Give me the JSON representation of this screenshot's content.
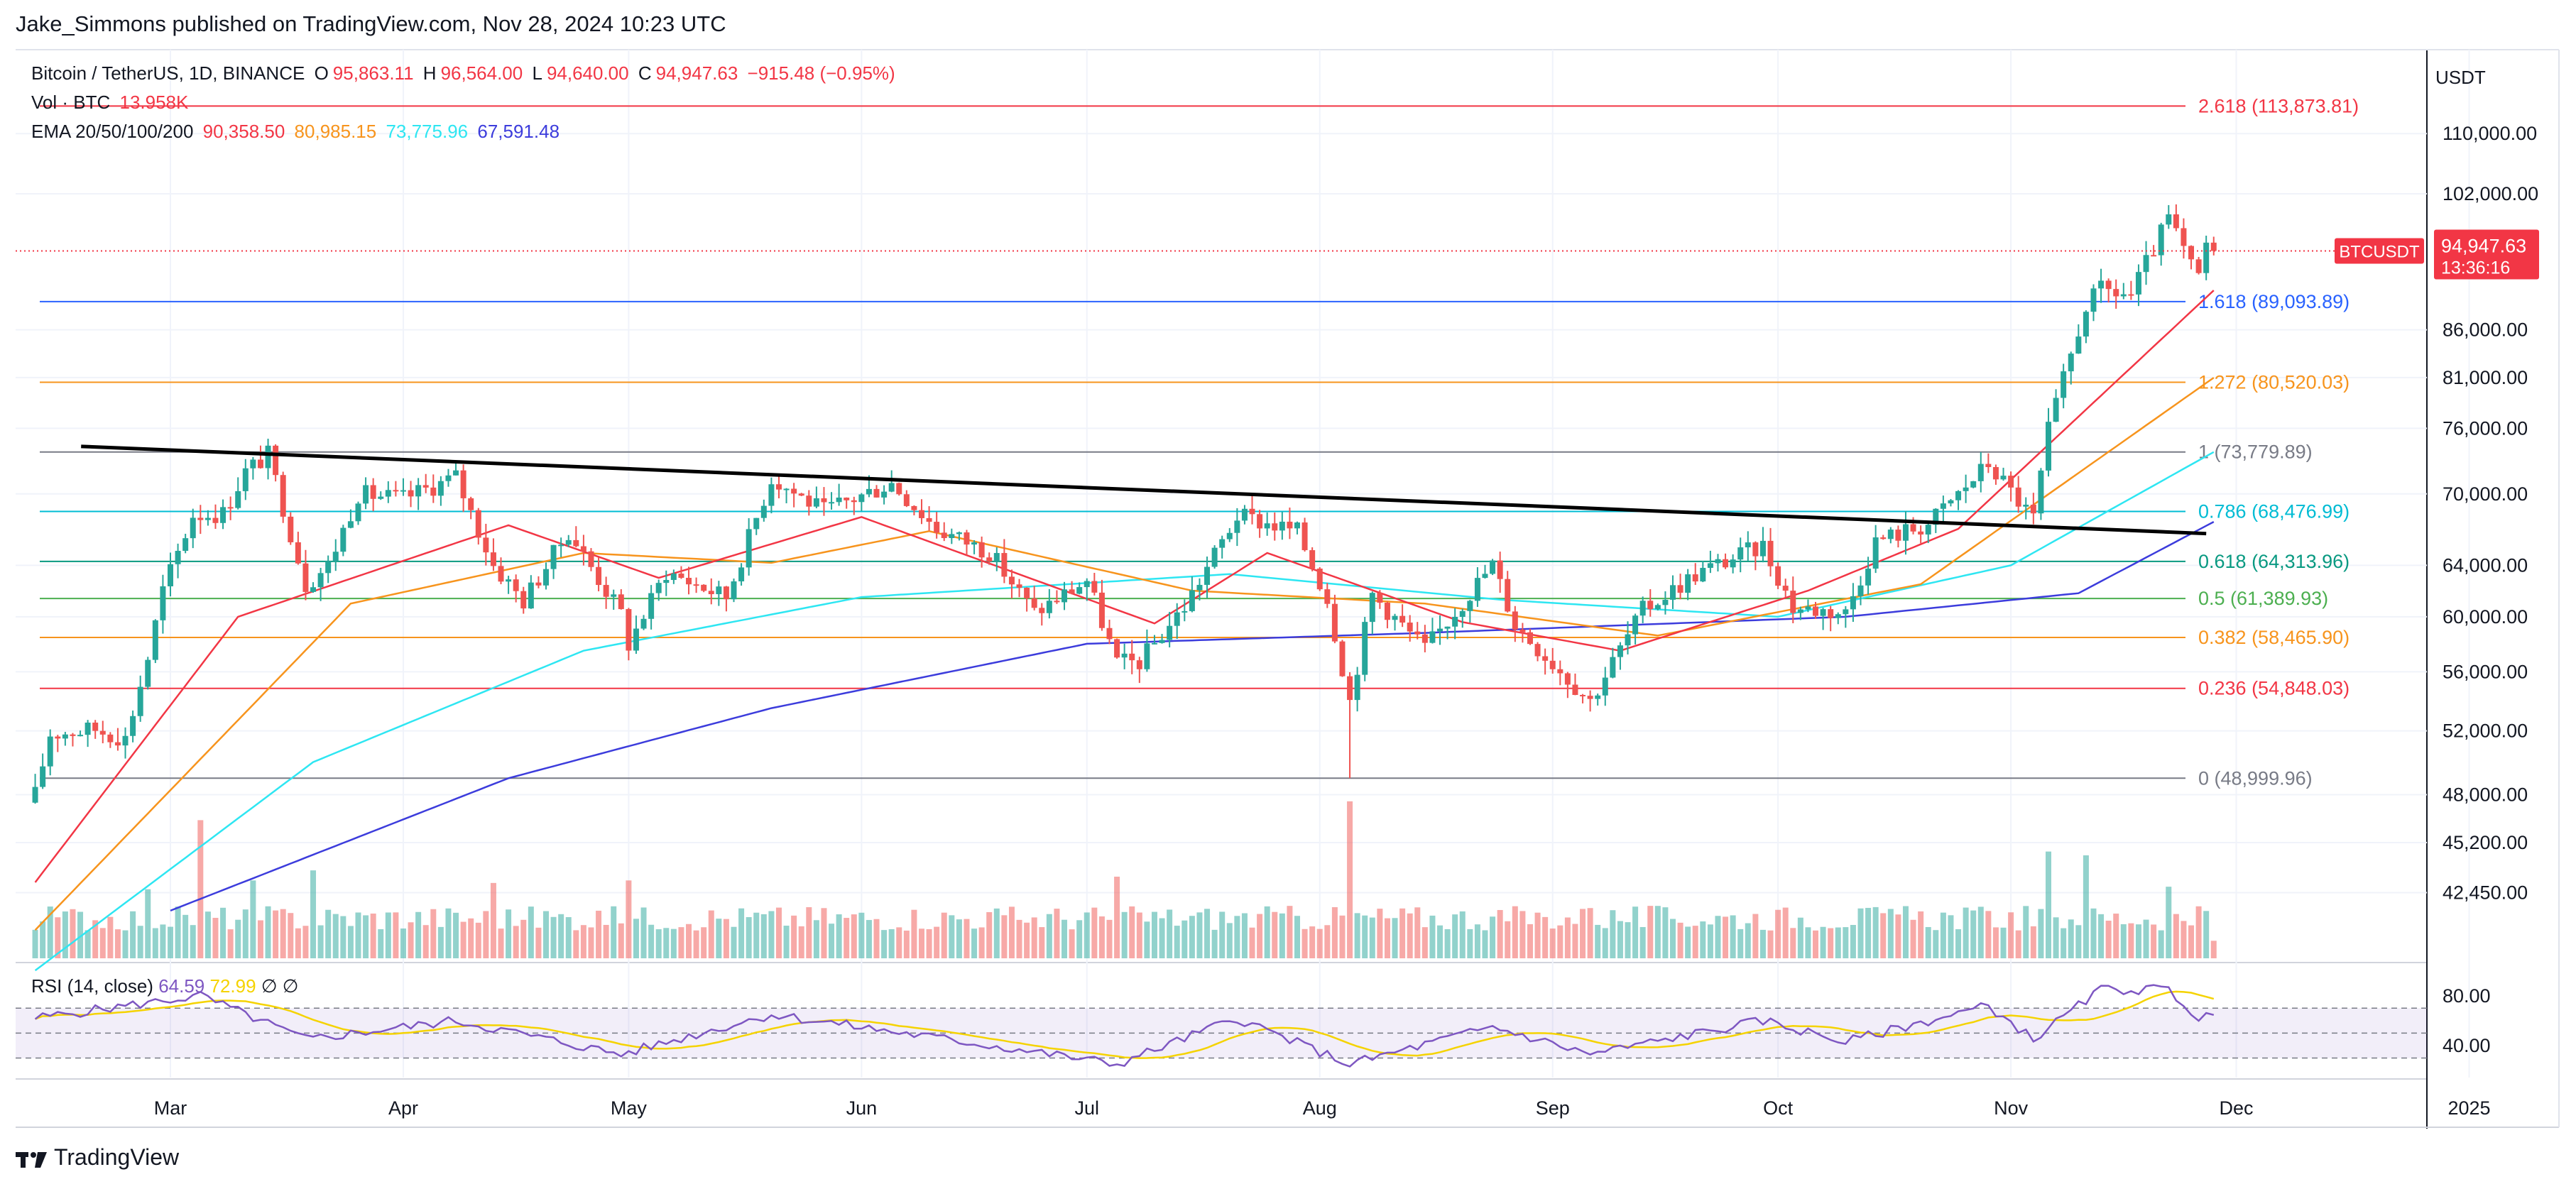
{
  "header": {
    "publisher": "Jake_Simmons published on TradingView.com, Nov 28, 2024 10:23 UTC"
  },
  "legend": {
    "symbol": "Bitcoin / TetherUS, 1D, BINANCE",
    "open_label": "O",
    "open": "95,863.11",
    "high_label": "H",
    "high": "96,564.00",
    "low_label": "L",
    "low": "94,640.00",
    "close_label": "C",
    "close": "94,947.63",
    "change": "−915.48 (−0.95%)",
    "vol_label": "Vol · BTC",
    "vol_value": "13.958K",
    "ema_label": "EMA 20/50/100/200",
    "ema20": "90,358.50",
    "ema50": "80,985.15",
    "ema100": "73,775.96",
    "ema200": "67,591.48"
  },
  "rsi_legend": {
    "label": "RSI (14, close)",
    "rsi": "64.59",
    "ma": "72.99",
    "icon1": "∅",
    "icon2": "∅"
  },
  "price_axis": {
    "currency": "USDT"
  },
  "price_tag": {
    "symbol": "BTCUSDT",
    "price": "94,947.63",
    "countdown": "13:36:16"
  },
  "footer": {
    "brand": "TradingView"
  },
  "colors": {
    "up": "#26a69a",
    "down": "#ef5350",
    "ema20": "#f23645",
    "ema50": "#f7941d",
    "ema100": "#2ee6f2",
    "ema200": "#3c3cdc",
    "rsi": "#7e57c2",
    "rsi_ma": "#f5d300"
  },
  "chart_data": {
    "type": "candlestick",
    "symbol": "BTCUSDT",
    "interval": "1D",
    "y_scale": "log",
    "y_ticks": [
      110000,
      102000,
      86000,
      81000,
      76000,
      70000,
      64000,
      60000,
      56000,
      52000,
      48000,
      45200,
      42450
    ],
    "y_tick_labels": [
      "110,000.00",
      "102,000.00",
      "86,000.00",
      "81,000.00",
      "76,000.00",
      "70,000.00",
      "64,000.00",
      "60,000.00",
      "56,000.00",
      "52,000.00",
      "48,000.00",
      "45,200.00",
      "42,450.00"
    ],
    "x_ticks": [
      "Mar",
      "Apr",
      "May",
      "Jun",
      "Jul",
      "Aug",
      "Sep",
      "Oct",
      "Nov",
      "Dec",
      "2025"
    ],
    "x_tick_dates": [
      "2024-03-01",
      "2024-04-01",
      "2024-05-01",
      "2024-06-01",
      "2024-07-01",
      "2024-08-01",
      "2024-09-01",
      "2024-10-01",
      "2024-11-01",
      "2024-12-01",
      "2025-01-01"
    ],
    "last_price": 94947.63,
    "fib_levels": [
      {
        "label": "2.618 (113,873.81)",
        "value": 113873.81,
        "color": "#f23645"
      },
      {
        "label": "1.618 (89,093.89)",
        "value": 89093.89,
        "color": "#2962ff"
      },
      {
        "label": "1.272 (80,520.03)",
        "value": 80520.03,
        "color": "#f7941d"
      },
      {
        "label": "1 (73,779.89)",
        "value": 73779.89,
        "color": "#787b86"
      },
      {
        "label": "0.786 (68,476.99)",
        "value": 68476.99,
        "color": "#00bcd4"
      },
      {
        "label": "0.618 (64,313.96)",
        "value": 64313.96,
        "color": "#089981"
      },
      {
        "label": "0.5 (61,389.93)",
        "value": 61389.93,
        "color": "#4caf50"
      },
      {
        "label": "0.382 (58,465.90)",
        "value": 58465.9,
        "color": "#f7941d"
      },
      {
        "label": "0.236 (54,848.03)",
        "value": 54848.03,
        "color": "#f23645"
      },
      {
        "label": "0 (48,999.96)",
        "value": 48999.96,
        "color": "#787b86"
      }
    ],
    "trendline": {
      "from": [
        "2024-02-20",
        74300
      ],
      "to": [
        "2024-11-27",
        66600
      ]
    },
    "close_keypoints": [
      [
        "2024-02-12",
        48000
      ],
      [
        "2024-02-14",
        51800
      ],
      [
        "2024-02-20",
        52100
      ],
      [
        "2024-02-24",
        51500
      ],
      [
        "2024-02-27",
        57000
      ],
      [
        "2024-02-29",
        62000
      ],
      [
        "2024-03-04",
        68200
      ],
      [
        "2024-03-08",
        68300
      ],
      [
        "2024-03-11",
        72000
      ],
      [
        "2024-03-14",
        73500
      ],
      [
        "2024-03-19",
        62500
      ],
      [
        "2024-03-22",
        64000
      ],
      [
        "2024-03-26",
        70000
      ],
      [
        "2024-04-01",
        69600
      ],
      [
        "2024-04-08",
        71500
      ],
      [
        "2024-04-13",
        64000
      ],
      [
        "2024-04-17",
        61200
      ],
      [
        "2024-04-23",
        66800
      ],
      [
        "2024-04-30",
        60200
      ],
      [
        "2024-05-01",
        58000
      ],
      [
        "2024-05-06",
        63500
      ],
      [
        "2024-05-14",
        61500
      ],
      [
        "2024-05-20",
        71400
      ],
      [
        "2024-05-27",
        68500
      ],
      [
        "2024-06-05",
        71000
      ],
      [
        "2024-06-11",
        67000
      ],
      [
        "2024-06-18",
        65100
      ],
      [
        "2024-06-24",
        60300
      ],
      [
        "2024-07-01",
        62800
      ],
      [
        "2024-07-05",
        56600
      ],
      [
        "2024-07-08",
        56700
      ],
      [
        "2024-07-14",
        60800
      ],
      [
        "2024-07-21",
        68100
      ],
      [
        "2024-07-29",
        66800
      ],
      [
        "2024-08-02",
        61400
      ],
      [
        "2024-08-05",
        54000
      ],
      [
        "2024-08-08",
        61700
      ],
      [
        "2024-08-15",
        57600
      ],
      [
        "2024-08-24",
        64100
      ],
      [
        "2024-08-27",
        59400
      ],
      [
        "2024-09-06",
        54000
      ],
      [
        "2024-09-13",
        60500
      ],
      [
        "2024-09-20",
        63300
      ],
      [
        "2024-09-29",
        65600
      ],
      [
        "2024-10-03",
        60700
      ],
      [
        "2024-10-10",
        60300
      ],
      [
        "2024-10-14",
        66000
      ],
      [
        "2024-10-21",
        67400
      ],
      [
        "2024-10-29",
        72700
      ],
      [
        "2024-11-04",
        67800
      ],
      [
        "2024-11-06",
        75800
      ],
      [
        "2024-11-11",
        88700
      ],
      [
        "2024-11-13",
        90400
      ],
      [
        "2024-11-17",
        89800
      ],
      [
        "2024-11-22",
        98900
      ],
      [
        "2024-11-25",
        93000
      ],
      [
        "2024-11-26",
        91900
      ],
      [
        "2024-11-27",
        95863
      ],
      [
        "2024-11-28",
        94947.63
      ]
    ],
    "ema_keypoints": {
      "ema20": [
        [
          "2024-02-12",
          43000
        ],
        [
          "2024-03-10",
          60000
        ],
        [
          "2024-04-15",
          67300
        ],
        [
          "2024-05-05",
          63000
        ],
        [
          "2024-06-01",
          68000
        ],
        [
          "2024-07-10",
          59500
        ],
        [
          "2024-07-25",
          65000
        ],
        [
          "2024-08-20",
          59600
        ],
        [
          "2024-09-10",
          57500
        ],
        [
          "2024-10-05",
          62000
        ],
        [
          "2024-10-25",
          67000
        ],
        [
          "2024-11-28",
          90358.5
        ]
      ],
      "ema50": [
        [
          "2024-02-12",
          40500
        ],
        [
          "2024-03-25",
          61000
        ],
        [
          "2024-04-25",
          65000
        ],
        [
          "2024-05-20",
          64200
        ],
        [
          "2024-06-10",
          66800
        ],
        [
          "2024-07-15",
          62000
        ],
        [
          "2024-08-15",
          61000
        ],
        [
          "2024-09-15",
          58600
        ],
        [
          "2024-10-20",
          62500
        ],
        [
          "2024-11-28",
          80985.15
        ]
      ],
      "ema100": [
        [
          "2024-02-12",
          38500
        ],
        [
          "2024-03-20",
          50000
        ],
        [
          "2024-04-25",
          57500
        ],
        [
          "2024-06-01",
          61500
        ],
        [
          "2024-07-20",
          63300
        ],
        [
          "2024-08-25",
          61300
        ],
        [
          "2024-10-01",
          60000
        ],
        [
          "2024-11-01",
          64000
        ],
        [
          "2024-11-28",
          73775.96
        ]
      ],
      "ema200": [
        [
          "2024-03-01",
          41500
        ],
        [
          "2024-04-15",
          49000
        ],
        [
          "2024-05-20",
          53500
        ],
        [
          "2024-07-01",
          58000
        ],
        [
          "2024-08-15",
          58800
        ],
        [
          "2024-10-10",
          60000
        ],
        [
          "2024-11-10",
          61800
        ],
        [
          "2024-11-28",
          67591.48
        ]
      ]
    },
    "volume_btc_k": [
      [
        "2024-02-27",
        55
      ],
      [
        "2024-03-05",
        110
      ],
      [
        "2024-03-12",
        62
      ],
      [
        "2024-03-20",
        70
      ],
      [
        "2024-04-13",
        60
      ],
      [
        "2024-05-01",
        62
      ],
      [
        "2024-07-05",
        65
      ],
      [
        "2024-08-05",
        125
      ],
      [
        "2024-09-06",
        40
      ],
      [
        "2024-11-06",
        85
      ],
      [
        "2024-11-11",
        82
      ],
      [
        "2024-11-22",
        57
      ],
      [
        "2024-11-28",
        13.958
      ]
    ],
    "rsi": {
      "period": 14,
      "last": 64.59,
      "ma_last": 72.99,
      "y_ticks": [
        80,
        40
      ],
      "y_tick_labels": [
        "80.00",
        "40.00"
      ],
      "overbought": 70,
      "oversold": 30,
      "keypoints": [
        [
          "2024-02-12",
          62
        ],
        [
          "2024-03-05",
          80
        ],
        [
          "2024-03-19",
          45
        ],
        [
          "2024-04-08",
          60
        ],
        [
          "2024-04-30",
          33
        ],
        [
          "2024-05-20",
          65
        ],
        [
          "2024-06-24",
          35
        ],
        [
          "2024-07-05",
          25
        ],
        [
          "2024-07-21",
          62
        ],
        [
          "2024-08-05",
          25
        ],
        [
          "2024-08-24",
          55
        ],
        [
          "2024-09-06",
          33
        ],
        [
          "2024-09-29",
          60
        ],
        [
          "2024-10-10",
          43
        ],
        [
          "2024-10-29",
          72
        ],
        [
          "2024-11-04",
          45
        ],
        [
          "2024-11-13",
          85
        ],
        [
          "2024-11-22",
          85
        ],
        [
          "2024-11-26",
          62
        ],
        [
          "2024-11-28",
          64.59
        ]
      ]
    }
  }
}
